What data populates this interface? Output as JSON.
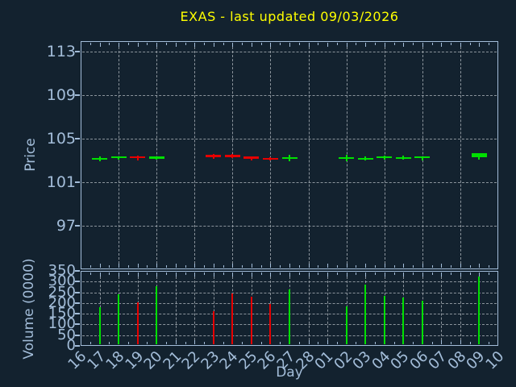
{
  "colors": {
    "background": "#13222f",
    "title": "#ffff00",
    "axis": "#a3bdd9",
    "grid": "#a0a8b0",
    "up": "#00e000",
    "down": "#e60000"
  },
  "chart_data": {
    "type": "candlestick",
    "title": "EXAS - last updated 09/03/2026",
    "legend": "none",
    "grid": "dashed",
    "x_axis": {
      "label": "Day",
      "categories": [
        "16",
        "17",
        "18",
        "19",
        "20",
        "21",
        "22",
        "23",
        "24",
        "25",
        "26",
        "27",
        "28",
        "01",
        "02",
        "03",
        "04",
        "05",
        "06",
        "07",
        "08",
        "09",
        "10"
      ]
    },
    "price_axis": {
      "label": "Price",
      "ticks": [
        97,
        101,
        105,
        109,
        113
      ]
    },
    "volume_axis": {
      "label": "Volume (0000)",
      "ticks": [
        0,
        50,
        100,
        150,
        200,
        250,
        300,
        350
      ]
    },
    "candles": [
      {
        "day": "17",
        "open": 103.05,
        "close": 103.25,
        "high": 103.35,
        "low": 102.95,
        "volume": 180
      },
      {
        "day": "18",
        "open": 103.2,
        "close": 103.35,
        "high": 103.4,
        "low": 103.1,
        "volume": 240
      },
      {
        "day": "19",
        "open": 103.4,
        "close": 103.2,
        "high": 103.45,
        "low": 103.0,
        "volume": 205
      },
      {
        "day": "20",
        "open": 103.15,
        "close": 103.35,
        "high": 103.4,
        "low": 103.05,
        "volume": 280
      },
      {
        "day": "23",
        "open": 103.5,
        "close": 103.3,
        "high": 103.6,
        "low": 103.15,
        "volume": 160
      },
      {
        "day": "24",
        "open": 103.55,
        "close": 103.3,
        "high": 103.6,
        "low": 103.2,
        "volume": 245
      },
      {
        "day": "25",
        "open": 103.35,
        "close": 103.15,
        "high": 103.4,
        "low": 103.0,
        "volume": 230
      },
      {
        "day": "26",
        "open": 103.25,
        "close": 103.1,
        "high": 103.3,
        "low": 103.0,
        "volume": 195
      },
      {
        "day": "27",
        "open": 103.15,
        "close": 103.3,
        "high": 103.55,
        "low": 102.9,
        "volume": 265
      },
      {
        "day": "02",
        "open": 103.15,
        "close": 103.3,
        "high": 103.5,
        "low": 102.95,
        "volume": 185
      },
      {
        "day": "03",
        "open": 103.05,
        "close": 103.25,
        "high": 103.4,
        "low": 103.0,
        "volume": 285
      },
      {
        "day": "04",
        "open": 103.2,
        "close": 103.4,
        "high": 103.45,
        "low": 103.1,
        "volume": 235
      },
      {
        "day": "05",
        "open": 103.15,
        "close": 103.3,
        "high": 103.45,
        "low": 103.1,
        "volume": 225
      },
      {
        "day": "06",
        "open": 103.2,
        "close": 103.35,
        "high": 103.4,
        "low": 103.0,
        "volume": 210
      },
      {
        "day": "09",
        "open": 103.3,
        "close": 103.7,
        "high": 103.7,
        "low": 103.1,
        "volume": 325
      }
    ]
  }
}
